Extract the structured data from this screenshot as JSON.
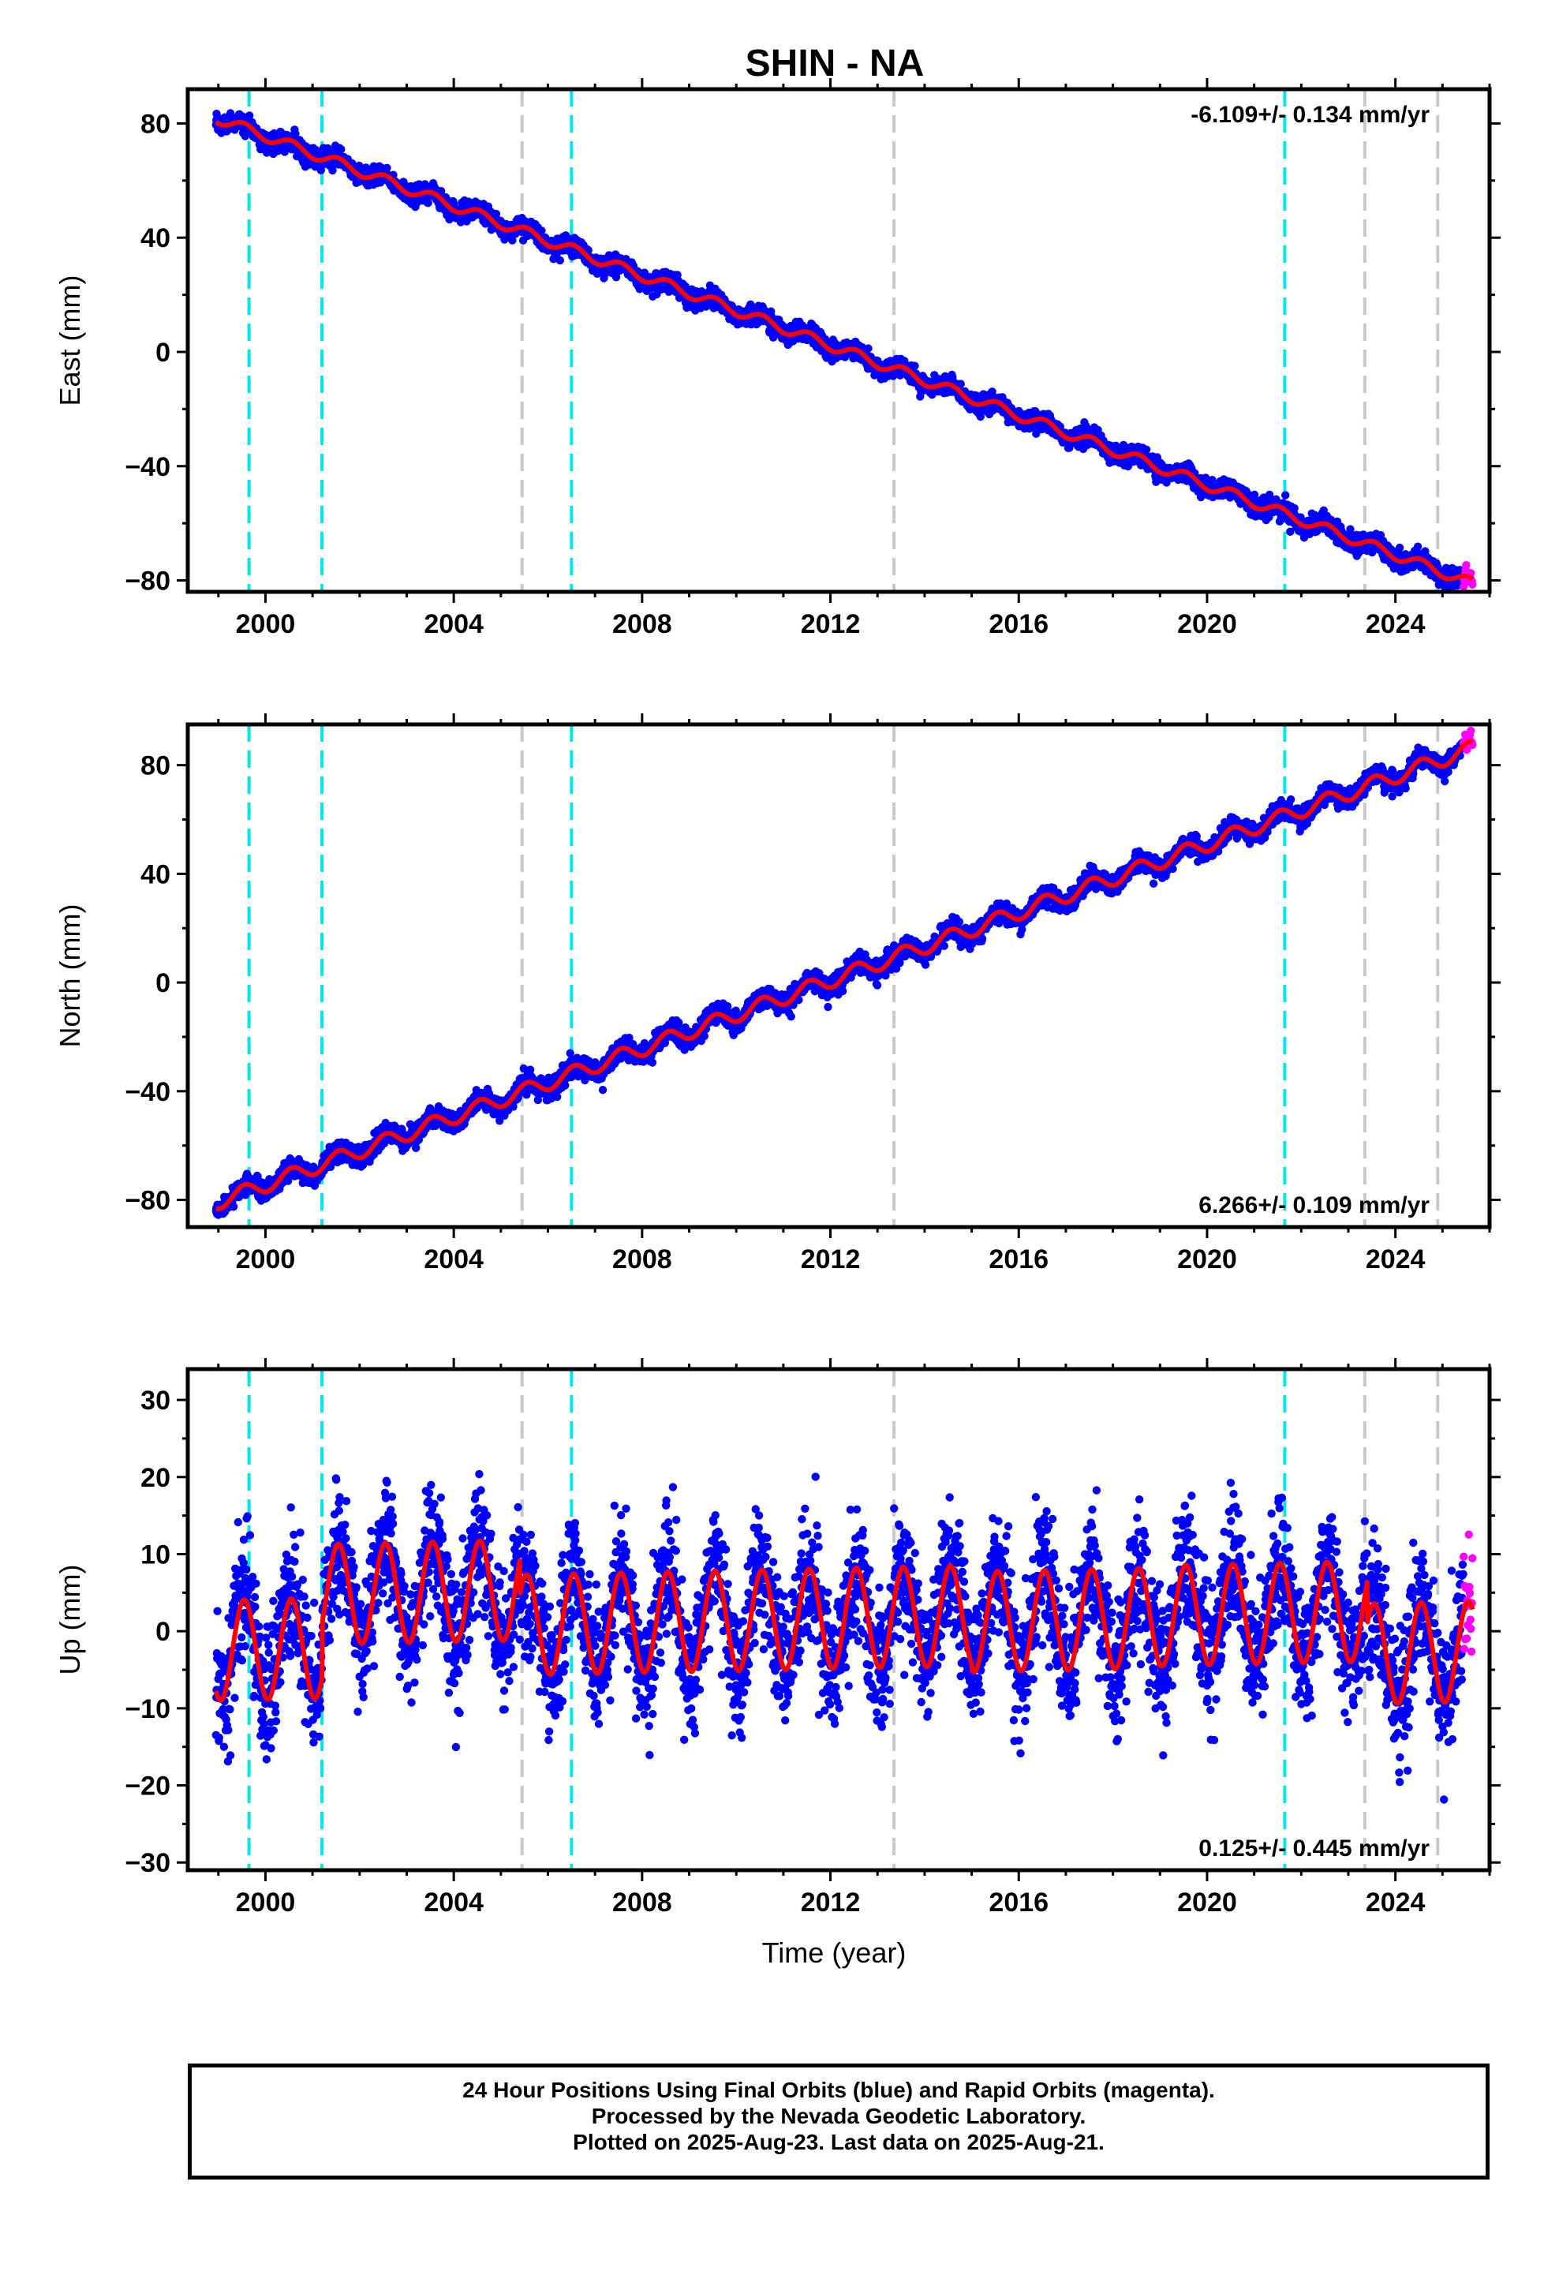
{
  "title": "SHIN - NA",
  "colors": {
    "final_orbits": "#0000ff",
    "rapid_orbits": "#ff00ff",
    "model_fit": "#ff0000",
    "equipment_change": "#00e5ee",
    "other_event": "#c8c8c8",
    "axes": "#000000"
  },
  "xlabel": "Time (year)",
  "footer": {
    "line1": "24 Hour Positions Using Final Orbits (blue) and Rapid Orbits (magenta).",
    "line2": "Processed by the Nevada Geodetic Laboratory.",
    "line3": "Plotted on 2025-Aug-23. Last data on 2025-Aug-21."
  },
  "chart_data": [
    {
      "type": "scatter",
      "component": "east",
      "ylabel": "East (mm)",
      "xlim": [
        1998.35,
        2026.0
      ],
      "ylim": [
        -84,
        92
      ],
      "x_ticks": [
        2000,
        2004,
        2008,
        2012,
        2016,
        2020,
        2024
      ],
      "y_ticks": [
        80,
        40,
        0,
        -40,
        -80
      ],
      "rate_label": "-6.109+/- 0.134 mm/yr",
      "rate_position": "top-right",
      "model": {
        "start": 1998.95,
        "end": 2025.64,
        "intercept_at_start": 82.0,
        "slope": -6.109,
        "annual_amplitude": 1.8,
        "noise_sigma": 1.6
      },
      "rapid_orbit_segment": [
        2025.45,
        2025.64
      ],
      "grid": false
    },
    {
      "type": "scatter",
      "component": "north",
      "ylabel": "North (mm)",
      "xlim": [
        1998.35,
        2026.0
      ],
      "ylim": [
        -90,
        95
      ],
      "x_ticks": [
        2000,
        2004,
        2008,
        2012,
        2016,
        2020,
        2024
      ],
      "y_ticks": [
        80,
        40,
        0,
        -40,
        -80
      ],
      "rate_label": "6.266+/- 0.109 mm/yr",
      "rate_position": "bottom-right",
      "model": {
        "start": 1998.95,
        "end": 2025.64,
        "intercept_at_start": -81.0,
        "slope": 6.266,
        "annual_amplitude": 2.8,
        "noise_sigma": 1.8
      },
      "rapid_orbit_segment": [
        2025.45,
        2025.64
      ],
      "grid": false
    },
    {
      "type": "scatter",
      "component": "up",
      "ylabel": "Up (mm)",
      "xlim": [
        1998.35,
        2026.0
      ],
      "ylim": [
        -31,
        34
      ],
      "x_ticks": [
        2000,
        2004,
        2008,
        2012,
        2016,
        2020,
        2024
      ],
      "y_ticks": [
        30,
        20,
        10,
        0,
        -10,
        -20,
        -30
      ],
      "rate_label": "0.125+/- 0.445 mm/yr",
      "rate_position": "bottom-right",
      "model": {
        "start": 1998.95,
        "end": 2025.64,
        "intercept_at_start": 0.0,
        "slope": 0.125,
        "annual_amplitude": 6.5,
        "noise_sigma": 4.2
      },
      "annual_offsets": [
        {
          "from": 1998.95,
          "to": 2001.2,
          "offset": -2.5
        },
        {
          "from": 2001.2,
          "to": 2005.4,
          "offset": 4.5
        },
        {
          "from": 2005.4,
          "to": 2015.0,
          "offset": 0.0
        },
        {
          "from": 2015.0,
          "to": 2019.0,
          "offset": -0.8
        },
        {
          "from": 2019.0,
          "to": 2023.4,
          "offset": -0.5
        },
        {
          "from": 2023.4,
          "to": 2025.64,
          "offset": -6.0
        }
      ],
      "rapid_orbit_segment": [
        2025.45,
        2025.64
      ],
      "grid": false
    }
  ],
  "events": {
    "equipment_change": [
      1999.65,
      2001.2,
      2006.5,
      2021.65
    ],
    "other": [
      2005.45,
      2013.35,
      2023.35,
      2024.9
    ]
  }
}
